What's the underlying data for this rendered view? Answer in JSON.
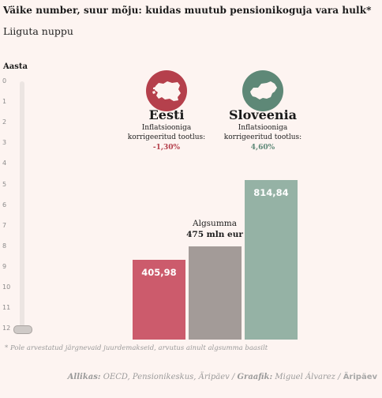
{
  "header": {
    "title": "Väike number, suur mõju: kuidas muutub pensionikoguja vara hulk*",
    "subtitle": "Liiguta nuppu"
  },
  "slider": {
    "label": "Aasta",
    "ticks": [
      "0",
      "1",
      "2",
      "3",
      "4",
      "5",
      "6",
      "7",
      "8",
      "9",
      "10",
      "11",
      "12"
    ],
    "value": 12
  },
  "countries": {
    "estonia": {
      "name": "Eesti",
      "inflation_label": "Inflatsiooniga korrigeeritud tootlus:",
      "return": "-1,30%",
      "color": "#b5404c",
      "icon": "estonia-map-icon"
    },
    "slovenia": {
      "name": "Sloveenia",
      "inflation_label": "Inflatsiooniga korrigeeritud tootlus:",
      "return": "4,60%",
      "color": "#5e8877",
      "icon": "slovenia-map-icon"
    }
  },
  "bars": {
    "estonia": {
      "label": "405,98",
      "value": 405.98,
      "color": "#cc5b6c"
    },
    "base": {
      "label_line1": "Algsumma",
      "label_line2": "475 mln eur",
      "value": 475,
      "color": "#a39b98"
    },
    "slovenia": {
      "label": "814,84",
      "value": 814.84,
      "color": "#95b2a5"
    }
  },
  "footnote": "*  Pole arvestatud järgnevaid juurdemakseid, arvutus ainult algsumma baasilt",
  "source": {
    "label1": "Allikas:",
    "text1": "OECD, Pensionikeskus, Äripäev /",
    "label2": "Graafik:",
    "text2": "Miguel Álvarez /",
    "brand": "Äripäev"
  }
}
